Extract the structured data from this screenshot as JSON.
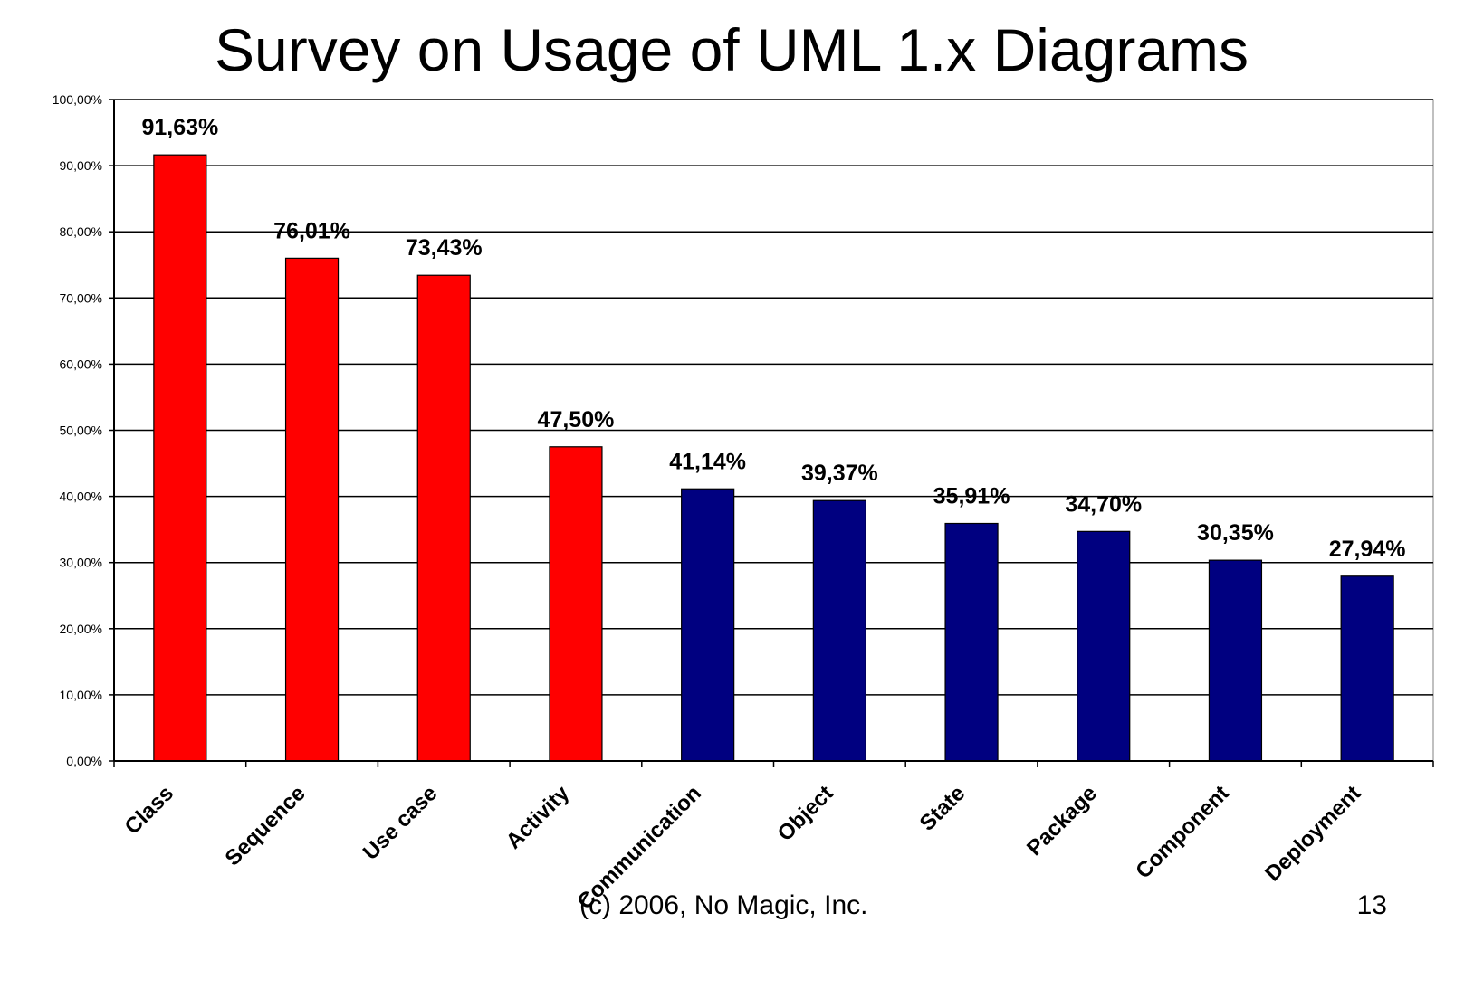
{
  "slide": {
    "title": "Survey on Usage of UML 1.x Diagrams",
    "footer": "(c) 2006, No Magic, Inc.",
    "page_number": "13"
  },
  "colors": {
    "highlight": "#ff0000",
    "normal": "#000080",
    "grid": "#000000",
    "background": "#ffffff"
  },
  "chart_data": {
    "type": "bar",
    "title": "Survey on Usage of UML 1.x Diagrams",
    "xlabel": "",
    "ylabel": "",
    "categories": [
      "Class",
      "Sequence",
      "Use case",
      "Activity",
      "Communication",
      "Object",
      "State",
      "Package",
      "Component",
      "Deployment"
    ],
    "values": [
      91.63,
      76.01,
      73.43,
      47.5,
      41.14,
      39.37,
      35.91,
      34.7,
      30.35,
      27.94
    ],
    "data_labels": [
      "91,63%",
      "76,01%",
      "73,43%",
      "47,50%",
      "41,14%",
      "39,37%",
      "35,91%",
      "34,70%",
      "30,35%",
      "27,94%"
    ],
    "bar_colors": [
      "#ff0000",
      "#ff0000",
      "#ff0000",
      "#ff0000",
      "#000080",
      "#000080",
      "#000080",
      "#000080",
      "#000080",
      "#000080"
    ],
    "ylim": [
      0,
      100
    ],
    "yticks": [
      0,
      10,
      20,
      30,
      40,
      50,
      60,
      70,
      80,
      90,
      100
    ],
    "ytick_labels": [
      "0,00%",
      "10,00%",
      "20,00%",
      "30,00%",
      "40,00%",
      "50,00%",
      "60,00%",
      "70,00%",
      "80,00%",
      "90,00%",
      "100,00%"
    ],
    "grid": true,
    "legend": "none"
  }
}
